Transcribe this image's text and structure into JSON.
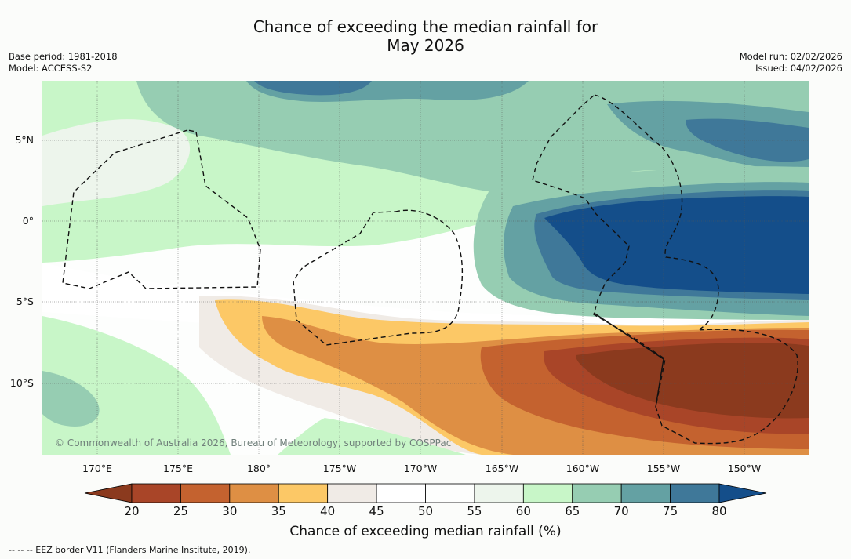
{
  "title": {
    "line1": "Chance of exceeding the median rainfall for",
    "line2": "May 2026"
  },
  "meta": {
    "base_period": "Base period: 1981-2018",
    "model": "Model: ACCESS-S2",
    "model_run": "Model run: 02/02/2026",
    "issued": "Issued: 04/02/2026"
  },
  "axes": {
    "lat_labels": [
      "5°N",
      "0°",
      "5°S",
      "10°S"
    ],
    "lat_values": [
      5,
      0,
      -5,
      -10
    ],
    "lon_labels": [
      "170°E",
      "175°E",
      "180°",
      "175°W",
      "170°W",
      "165°W",
      "160°W",
      "155°W",
      "150°W"
    ],
    "lon_values": [
      170,
      175,
      180,
      185,
      190,
      195,
      200,
      205,
      210
    ]
  },
  "copyright": "© Commonwealth of Australia 2026, Bureau of Meteorology, supported by COSPPac",
  "colorbar": {
    "ticks": [
      "20",
      "25",
      "30",
      "35",
      "40",
      "45",
      "50",
      "55",
      "60",
      "65",
      "70",
      "75",
      "80"
    ],
    "colors": [
      "#8b3a1e",
      "#a94528",
      "#c4622f",
      "#de8f44",
      "#fcc866",
      "#f0ebe6",
      "#ffffff",
      "#fdfefd",
      "#edf5ec",
      "#c8f6c8",
      "#96cdb2",
      "#64a1a3",
      "#3f7899",
      "#144e8a"
    ],
    "label": "Chance of exceeding median rainfall (%)"
  },
  "footnote": "--  --  -- EEZ border V11 (Flanders Marine Institute, 2019)."
}
